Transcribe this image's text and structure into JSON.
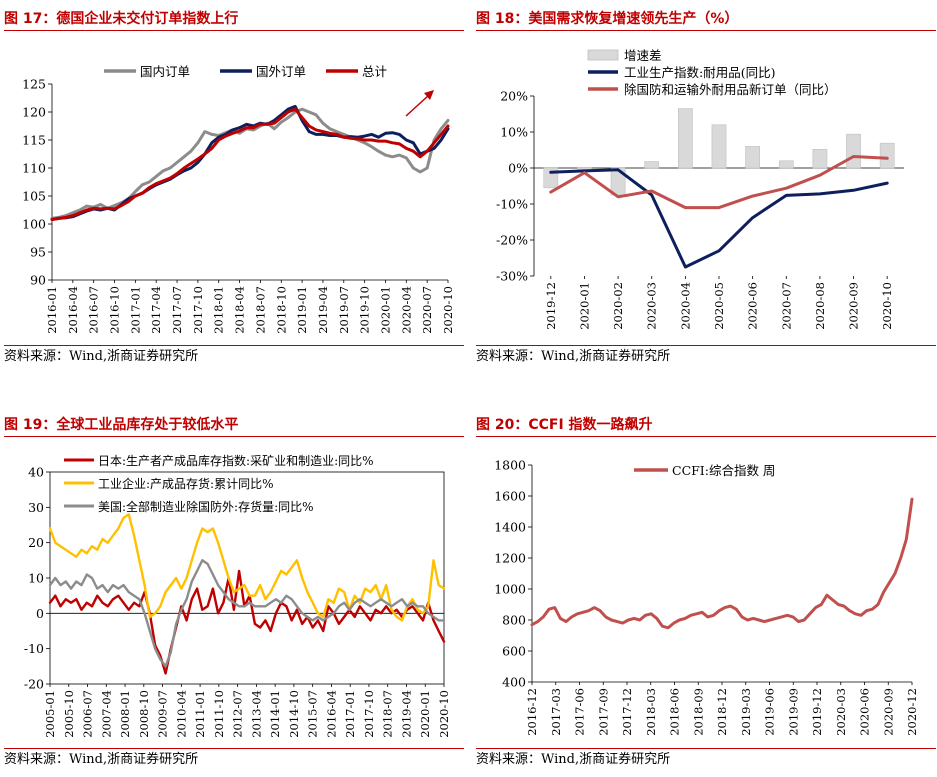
{
  "source_text": "资料来源：Wind,浙商证券研究所",
  "chart_data": [
    {
      "id": "c17",
      "type": "line",
      "title": "图 17：德国企业未交付订单指数上行",
      "ylim": [
        90,
        125
      ],
      "yticks": [
        "90",
        "95",
        "100",
        "105",
        "110",
        "115",
        "120",
        "125"
      ],
      "xticklabels": [
        "2016-01",
        "2016-04",
        "2016-07",
        "2016-10",
        "2017-01",
        "2017-04",
        "2017-07",
        "2017-10",
        "2018-01",
        "2018-04",
        "2018-07",
        "2018-10",
        "2019-01",
        "2019-04",
        "2019-07",
        "2019-10",
        "2020-01",
        "2020-04",
        "2020-07",
        "2020-10"
      ],
      "n_points": 58,
      "series": [
        {
          "name": "国内订单",
          "color": "#8c8c8c",
          "values": [
            101.0,
            101.2,
            101.5,
            102.0,
            102.5,
            103.2,
            103.0,
            103.5,
            102.8,
            103.3,
            103.8,
            104.5,
            105.8,
            107.0,
            107.5,
            108.5,
            109.5,
            110.0,
            111.0,
            112.0,
            113.0,
            114.5,
            116.5,
            116.0,
            115.8,
            116.3,
            116.8,
            116.2,
            117.0,
            116.8,
            117.5,
            118.0,
            117.0,
            118.2,
            119.0,
            120.0,
            120.5,
            120.0,
            119.5,
            118.0,
            117.0,
            116.5,
            116.0,
            115.5,
            115.0,
            114.5,
            113.8,
            113.0,
            112.3,
            112.0,
            112.3,
            111.8,
            110.0,
            109.3,
            110.0,
            115.0,
            117.0,
            118.5
          ]
        },
        {
          "name": "国外订单",
          "color": "#0d1f5c",
          "values": [
            100.8,
            101.0,
            101.1,
            101.3,
            101.8,
            102.3,
            102.7,
            102.5,
            102.8,
            102.5,
            103.5,
            104.5,
            105.0,
            105.5,
            106.3,
            107.0,
            107.5,
            108.0,
            108.8,
            109.5,
            110.0,
            111.0,
            112.5,
            114.5,
            115.5,
            116.0,
            116.8,
            117.2,
            117.8,
            117.5,
            118.0,
            117.8,
            118.5,
            119.5,
            120.5,
            121.0,
            118.5,
            116.5,
            116.0,
            116.0,
            115.8,
            115.8,
            115.5,
            115.6,
            115.5,
            115.7,
            116.0,
            115.5,
            116.2,
            116.3,
            116.0,
            115.0,
            114.5,
            112.5,
            113.0,
            113.5,
            115.0,
            117.0
          ]
        },
        {
          "name": "总计",
          "color": "#c00000",
          "values": [
            100.8,
            101.0,
            101.2,
            101.5,
            102.0,
            102.5,
            102.8,
            102.7,
            102.8,
            102.7,
            103.3,
            104.0,
            105.0,
            105.5,
            106.5,
            107.2,
            107.7,
            108.2,
            109.0,
            110.0,
            110.8,
            111.6,
            112.5,
            113.5,
            115.0,
            115.7,
            116.2,
            116.6,
            117.2,
            117.2,
            117.8,
            117.8,
            118.0,
            119.0,
            120.0,
            120.5,
            119.0,
            117.5,
            116.8,
            116.5,
            116.2,
            116.0,
            115.5,
            115.3,
            115.2,
            115.0,
            115.0,
            114.8,
            114.8,
            114.5,
            114.3,
            113.5,
            113.0,
            112.0,
            113.0,
            114.5,
            116.0,
            117.5
          ]
        }
      ]
    },
    {
      "id": "c18",
      "type": "bar+line",
      "title": "图 18：美国需求恢复增速领先生产（%）",
      "ylim": [
        -30,
        20
      ],
      "yticks": [
        "-30%",
        "-20%",
        "-10%",
        "0%",
        "10%",
        "20%"
      ],
      "categories": [
        "2019-12",
        "2020-01",
        "2020-02",
        "2020-03",
        "2020-04",
        "2020-05",
        "2020-06",
        "2020-07",
        "2020-08",
        "2020-09",
        "2020-10"
      ],
      "bars": {
        "name": "增速差",
        "color": "#d9d9d9",
        "values": [
          -5.5,
          -0.5,
          -7.5,
          1.8,
          16.5,
          12.0,
          6.0,
          2.0,
          5.2,
          9.4,
          6.9
        ]
      },
      "series": [
        {
          "name": "工业生产指数:耐用品(同比)",
          "color": "#0d1f5c",
          "values": [
            -1.2,
            -0.8,
            -0.5,
            -7.5,
            -27.5,
            -23.0,
            -13.8,
            -7.6,
            -7.2,
            -6.2,
            -4.2
          ]
        },
        {
          "name": "除国防和运输外耐用品新订单（同比）",
          "color": "#c0504d",
          "values": [
            -6.7,
            -1.3,
            -8.0,
            -6.4,
            -11.0,
            -11.0,
            -7.8,
            -5.6,
            -2.0,
            3.2,
            2.7
          ]
        }
      ]
    },
    {
      "id": "c19",
      "type": "line",
      "title": "图 19：全球工业品库存处于较低水平",
      "ylim": [
        -20,
        40
      ],
      "yticks": [
        "-20",
        "-10",
        "0",
        "10",
        "20",
        "30",
        "40"
      ],
      "xticklabels": [
        "2005-01",
        "2005-10",
        "2006-07",
        "2007-04",
        "2008-01",
        "2008-10",
        "2009-07",
        "2010-04",
        "2011-01",
        "2011-10",
        "2012-07",
        "2013-04",
        "2014-01",
        "2014-10",
        "2015-07",
        "2016-04",
        "2017-01",
        "2017-10",
        "2018-07",
        "2019-04",
        "2020-01",
        "2020-10"
      ],
      "series": [
        {
          "name": "日本:生产者产成品库存指数:采矿业和制造业:同比%",
          "color": "#c00000",
          "values": [
            3,
            5,
            2,
            4,
            3,
            4,
            1,
            3,
            2,
            5,
            3,
            2,
            4,
            5,
            3,
            1,
            3,
            2,
            6,
            0,
            -9,
            -12,
            -17,
            -10,
            -4,
            2,
            -2,
            4,
            7,
            1,
            2,
            7,
            0,
            3,
            10,
            1,
            12,
            2,
            5,
            -3,
            -4,
            -2,
            -5,
            0,
            3,
            2,
            -2,
            1,
            -3,
            -1,
            -4,
            -2,
            -5,
            2,
            0,
            -3,
            -1,
            1,
            -1,
            2,
            0,
            -2,
            1,
            0,
            2,
            0,
            1,
            -1,
            1,
            2,
            0,
            -2,
            3,
            -2,
            -5,
            -8
          ]
        },
        {
          "name": "工业企业:产成品存货:累计同比%",
          "color": "#ffc000",
          "values": [
            24,
            20,
            19,
            18,
            17,
            16,
            18,
            17,
            19,
            18,
            21,
            20,
            22,
            24,
            27,
            28,
            22,
            15,
            8,
            -1,
            0,
            2,
            6,
            8,
            10,
            7,
            10,
            15,
            20,
            24,
            23,
            24,
            20,
            15,
            10,
            6,
            7,
            8,
            5,
            5,
            8,
            4,
            6,
            9,
            12,
            11,
            13,
            15,
            10,
            6,
            3,
            0,
            -1,
            4,
            3,
            7,
            6,
            1,
            5,
            3,
            7,
            6,
            8,
            4,
            8,
            1,
            -1,
            -2,
            2,
            4,
            1,
            0,
            2,
            15,
            8,
            7
          ]
        },
        {
          "name": "美国:全部制造业除国防外:存货量:同比%",
          "color": "#8c8c8c",
          "values": [
            8,
            10,
            8,
            9,
            7,
            9,
            8,
            11,
            10,
            7,
            8,
            6,
            8,
            7,
            8,
            6,
            5,
            4,
            0,
            -5,
            -10,
            -13,
            -15,
            -11,
            -3,
            1,
            4,
            9,
            12,
            15,
            14,
            11,
            8,
            6,
            4,
            3,
            2,
            2,
            3,
            2,
            2,
            2,
            3,
            4,
            3,
            5,
            4,
            2,
            0,
            -1,
            -2,
            -1,
            -2,
            -1,
            0,
            2,
            3,
            1,
            3,
            4,
            3,
            2,
            3,
            4,
            3,
            2,
            3,
            4,
            2,
            3,
            2,
            2,
            0,
            -1,
            -2,
            -2
          ]
        }
      ]
    },
    {
      "id": "c20",
      "type": "line",
      "title": "图 20：CCFI 指数一路飙升",
      "ylim": [
        400,
        1800
      ],
      "yticks": [
        "400",
        "600",
        "800",
        "1000",
        "1200",
        "1400",
        "1600",
        "1800"
      ],
      "xticklabels": [
        "2016-12",
        "2017-03",
        "2017-06",
        "2017-09",
        "2017-12",
        "2018-03",
        "2018-06",
        "2018-09",
        "2018-12",
        "2019-03",
        "2019-06",
        "2019-09",
        "2019-12",
        "2020-03",
        "2020-06",
        "2020-09",
        "2020-12"
      ],
      "series": [
        {
          "name": "CCFI:综合指数 周",
          "color": "#c0504d",
          "values": [
            770,
            790,
            820,
            870,
            880,
            810,
            790,
            820,
            840,
            850,
            860,
            880,
            860,
            820,
            800,
            790,
            780,
            800,
            810,
            800,
            830,
            840,
            810,
            760,
            750,
            780,
            800,
            810,
            830,
            840,
            850,
            820,
            830,
            860,
            880,
            890,
            870,
            820,
            800,
            810,
            800,
            790,
            800,
            810,
            820,
            830,
            820,
            790,
            800,
            840,
            880,
            900,
            960,
            930,
            900,
            890,
            860,
            840,
            830,
            860,
            870,
            900,
            980,
            1040,
            1100,
            1200,
            1320,
            1580
          ]
        }
      ]
    }
  ]
}
